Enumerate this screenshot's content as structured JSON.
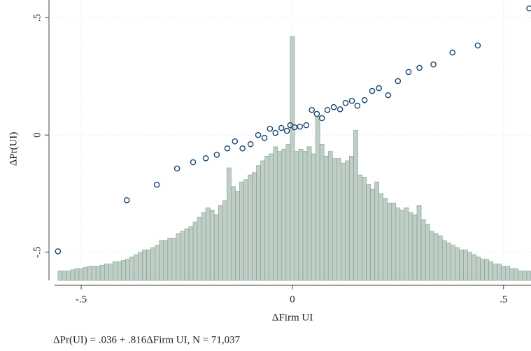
{
  "chart_data": {
    "type": "scatter",
    "x_label": "ΔFirm UI",
    "y_label": "ΔPr(UI)",
    "note": "ΔPr(UI) = .036 + .816ΔFirm UI, N = 71,037",
    "xlim": [
      -0.563,
      0.565
    ],
    "ylim": [
      -0.62,
      0.576
    ],
    "xticks": [
      {
        "value": -0.5,
        "label": "-.5"
      },
      0,
      {
        "value": 0.5,
        "label": ".5"
      }
    ],
    "yticks": [
      {
        "value": -0.5,
        "label": "-.5"
      },
      0,
      {
        "value": 0.5,
        "label": ".5"
      }
    ],
    "grid": true,
    "series": [
      {
        "color": "#1a476f",
        "x": [
          -0.555,
          -0.392,
          -0.321,
          -0.273,
          -0.235,
          -0.205,
          -0.179,
          -0.154,
          -0.136,
          -0.118,
          -0.099,
          -0.081,
          -0.066,
          -0.053,
          -0.04,
          -0.026,
          -0.013,
          -0.005,
          0.005,
          0.018,
          0.033,
          0.046,
          0.058,
          0.07,
          0.083,
          0.098,
          0.113,
          0.126,
          0.141,
          0.154,
          0.171,
          0.189,
          0.205,
          0.227,
          0.25,
          0.275,
          0.301,
          0.334,
          0.379,
          0.439,
          0.561
        ],
        "values": [
          -0.496,
          -0.278,
          -0.212,
          -0.143,
          -0.116,
          -0.099,
          -0.084,
          -0.057,
          -0.027,
          -0.057,
          -0.039,
          0,
          -0.012,
          0.027,
          0.009,
          0.03,
          0.018,
          0.042,
          0.033,
          0.036,
          0.042,
          0.107,
          0.09,
          0.072,
          0.107,
          0.119,
          0.11,
          0.137,
          0.146,
          0.125,
          0.149,
          0.188,
          0.2,
          0.17,
          0.23,
          0.269,
          0.287,
          0.301,
          0.352,
          0.382,
          0.54
        ]
      }
    ],
    "histogram": {
      "color": "#bfcfc6",
      "edge_color": "#7f9a8c",
      "bins": [
        -0.555,
        -0.545,
        -0.535,
        -0.525,
        -0.515,
        -0.505,
        -0.495,
        -0.485,
        -0.475,
        -0.465,
        -0.455,
        -0.445,
        -0.435,
        -0.425,
        -0.415,
        -0.405,
        -0.395,
        -0.385,
        -0.375,
        -0.365,
        -0.355,
        -0.345,
        -0.335,
        -0.325,
        -0.315,
        -0.305,
        -0.295,
        -0.285,
        -0.275,
        -0.265,
        -0.255,
        -0.245,
        -0.235,
        -0.225,
        -0.215,
        -0.205,
        -0.195,
        -0.185,
        -0.175,
        -0.165,
        -0.155,
        -0.145,
        -0.135,
        -0.125,
        -0.115,
        -0.105,
        -0.095,
        -0.085,
        -0.075,
        -0.065,
        -0.055,
        -0.045,
        -0.035,
        -0.025,
        -0.015,
        -0.005,
        0.005,
        0.015,
        0.025,
        0.035,
        0.045,
        0.055,
        0.065,
        0.075,
        0.085,
        0.095,
        0.105,
        0.115,
        0.125,
        0.135,
        0.145,
        0.155,
        0.165,
        0.175,
        0.185,
        0.195,
        0.205,
        0.215,
        0.225,
        0.235,
        0.245,
        0.255,
        0.265,
        0.275,
        0.285,
        0.295,
        0.305,
        0.315,
        0.325,
        0.335,
        0.345,
        0.355,
        0.365,
        0.375,
        0.385,
        0.395,
        0.405,
        0.415,
        0.425,
        0.435,
        0.445,
        0.455,
        0.465,
        0.475,
        0.485,
        0.495,
        0.505,
        0.515,
        0.525,
        0.535,
        0.545,
        0.555,
        0.565
      ],
      "values": [
        -0.58,
        -0.58,
        -0.58,
        -0.575,
        -0.57,
        -0.57,
        -0.565,
        -0.56,
        -0.56,
        -0.56,
        -0.555,
        -0.55,
        -0.55,
        -0.54,
        -0.54,
        -0.535,
        -0.53,
        -0.52,
        -0.51,
        -0.5,
        -0.49,
        -0.49,
        -0.48,
        -0.47,
        -0.45,
        -0.45,
        -0.44,
        -0.44,
        -0.42,
        -0.41,
        -0.4,
        -0.39,
        -0.37,
        -0.35,
        -0.33,
        -0.31,
        -0.32,
        -0.34,
        -0.3,
        -0.28,
        -0.14,
        -0.22,
        -0.24,
        -0.2,
        -0.19,
        -0.17,
        -0.16,
        -0.13,
        -0.11,
        -0.09,
        -0.08,
        -0.05,
        -0.07,
        -0.06,
        -0.04,
        0.42,
        -0.07,
        -0.06,
        -0.07,
        -0.05,
        -0.08,
        0.08,
        -0.04,
        -0.09,
        -0.07,
        -0.1,
        -0.1,
        -0.12,
        -0.11,
        -0.09,
        0.02,
        -0.17,
        -0.18,
        -0.21,
        -0.23,
        -0.2,
        -0.25,
        -0.27,
        -0.29,
        -0.29,
        -0.31,
        -0.32,
        -0.31,
        -0.33,
        -0.34,
        -0.3,
        -0.36,
        -0.38,
        -0.41,
        -0.42,
        -0.43,
        -0.45,
        -0.46,
        -0.47,
        -0.48,
        -0.49,
        -0.49,
        -0.5,
        -0.51,
        -0.52,
        -0.53,
        -0.53,
        -0.54,
        -0.55,
        -0.55,
        -0.56,
        -0.56,
        -0.57,
        -0.57,
        -0.58,
        -0.58,
        -0.58
      ]
    }
  }
}
